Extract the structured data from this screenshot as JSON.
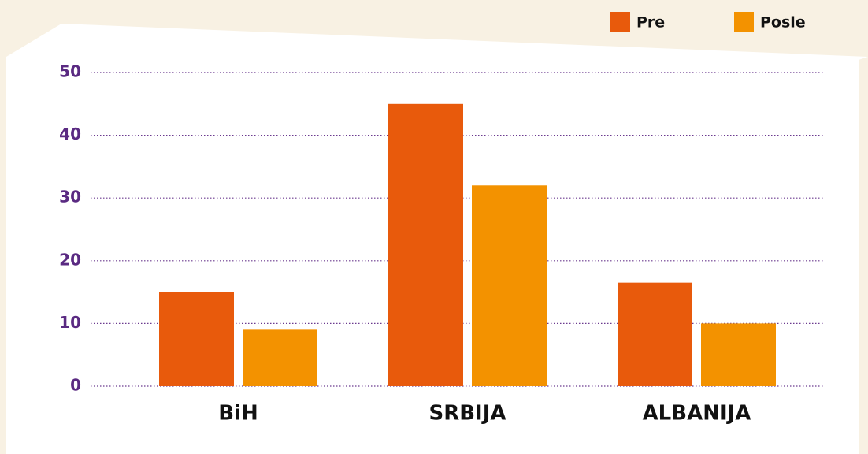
{
  "chart_data": {
    "type": "bar",
    "categories": [
      "BiH",
      "SRBIJA",
      "ALBANIJA"
    ],
    "series": [
      {
        "name": "Pre",
        "color": "#e85a0c",
        "values": [
          15,
          45,
          16.5
        ]
      },
      {
        "name": "Posle",
        "color": "#f39200",
        "values": [
          9,
          32,
          10
        ]
      }
    ],
    "ylim": [
      0,
      50
    ],
    "yticks": [
      0,
      10,
      20,
      30,
      40,
      50
    ],
    "grid": true,
    "legend": "top-right"
  }
}
